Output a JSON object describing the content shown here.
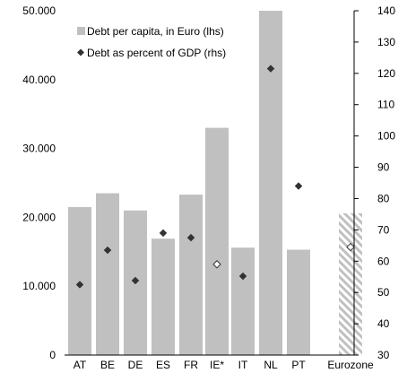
{
  "chart_data": {
    "type": "bar",
    "categories": [
      "AT",
      "BE",
      "DE",
      "ES",
      "FR",
      "IE*",
      "IT",
      "NL",
      "PT",
      "Eurozone"
    ],
    "series": [
      {
        "name": "Debt per capita, in Euro (lhs)",
        "type": "bar",
        "axis": "left",
        "values": [
          21500,
          23500,
          21000,
          16900,
          23300,
          33000,
          15600,
          50000,
          15300,
          20600
        ]
      },
      {
        "name": "Debt as percent of GDP (rhs)",
        "type": "scatter",
        "axis": "right",
        "values": [
          52.5,
          63.5,
          53.8,
          69,
          67.5,
          59,
          55.2,
          121.5,
          84,
          64.5
        ]
      }
    ],
    "left_axis": {
      "range": [
        0,
        50000
      ],
      "ticks": [
        0,
        10000,
        20000,
        30000,
        40000,
        50000
      ],
      "tick_labels": [
        "0",
        "10.000",
        "20.000",
        "30.000",
        "40.000",
        "50.000"
      ]
    },
    "right_axis": {
      "range": [
        30,
        140
      ],
      "ticks": [
        30,
        40,
        50,
        60,
        70,
        80,
        90,
        100,
        110,
        120,
        130,
        140
      ],
      "tick_labels": [
        "30",
        "40",
        "50",
        "60",
        "70",
        "80",
        "90",
        "100",
        "110",
        "120",
        "130",
        "140"
      ]
    },
    "hollow_markers": [
      "IE*",
      "Eurozone"
    ],
    "hatched_bars": [
      "Eurozone"
    ],
    "legend_position": "top-left",
    "grid": false,
    "colors": {
      "bar": "#c0c0c0",
      "hatch": "#c0c0c0",
      "marker": "#333333",
      "axis": "#000000"
    }
  }
}
